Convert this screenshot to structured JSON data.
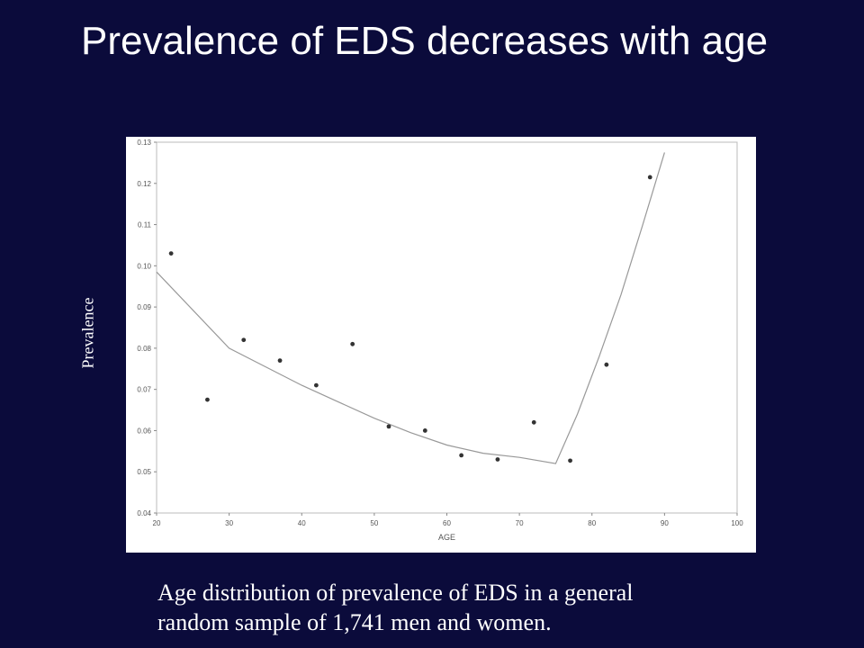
{
  "slide": {
    "title": "Prevalence of EDS decreases with age",
    "ylabel": "Prevalence",
    "caption_line1": "Age distribution of prevalence of EDS in a general",
    "caption_line2": "random sample of 1,741 men and women."
  },
  "chart_data": {
    "type": "scatter",
    "title": "",
    "xlabel": "AGE",
    "ylabel": "Prevalence",
    "xlim": [
      20,
      100
    ],
    "ylim": [
      0.04,
      0.13
    ],
    "xticks": [
      "20",
      "30",
      "40",
      "50",
      "60",
      "70",
      "80",
      "90",
      "100"
    ],
    "yticks": [
      "0.04",
      "0.05",
      "0.06",
      "0.07",
      "0.08",
      "0.09",
      "0.10",
      "0.11",
      "0.12",
      "0.13"
    ],
    "grid": false,
    "points": {
      "x": [
        22,
        27,
        32,
        37,
        42,
        47,
        52,
        57,
        62,
        67,
        72,
        77,
        82,
        88
      ],
      "y": [
        0.103,
        0.0675,
        0.082,
        0.077,
        0.071,
        0.081,
        0.061,
        0.06,
        0.054,
        0.053,
        0.062,
        0.0527,
        0.076,
        0.1215
      ]
    },
    "fit_line": {
      "x": [
        20,
        30,
        35,
        40,
        45,
        50,
        55,
        60,
        65,
        70,
        75,
        78,
        81,
        84,
        87,
        90
      ],
      "y": [
        0.0985,
        0.08,
        0.0755,
        0.071,
        0.067,
        0.063,
        0.0595,
        0.0565,
        0.0545,
        0.0535,
        0.052,
        0.064,
        0.078,
        0.093,
        0.11,
        0.1275
      ]
    },
    "colors": {
      "points": "#333333",
      "line": "#999999",
      "frame": "#bbbbbb"
    }
  }
}
